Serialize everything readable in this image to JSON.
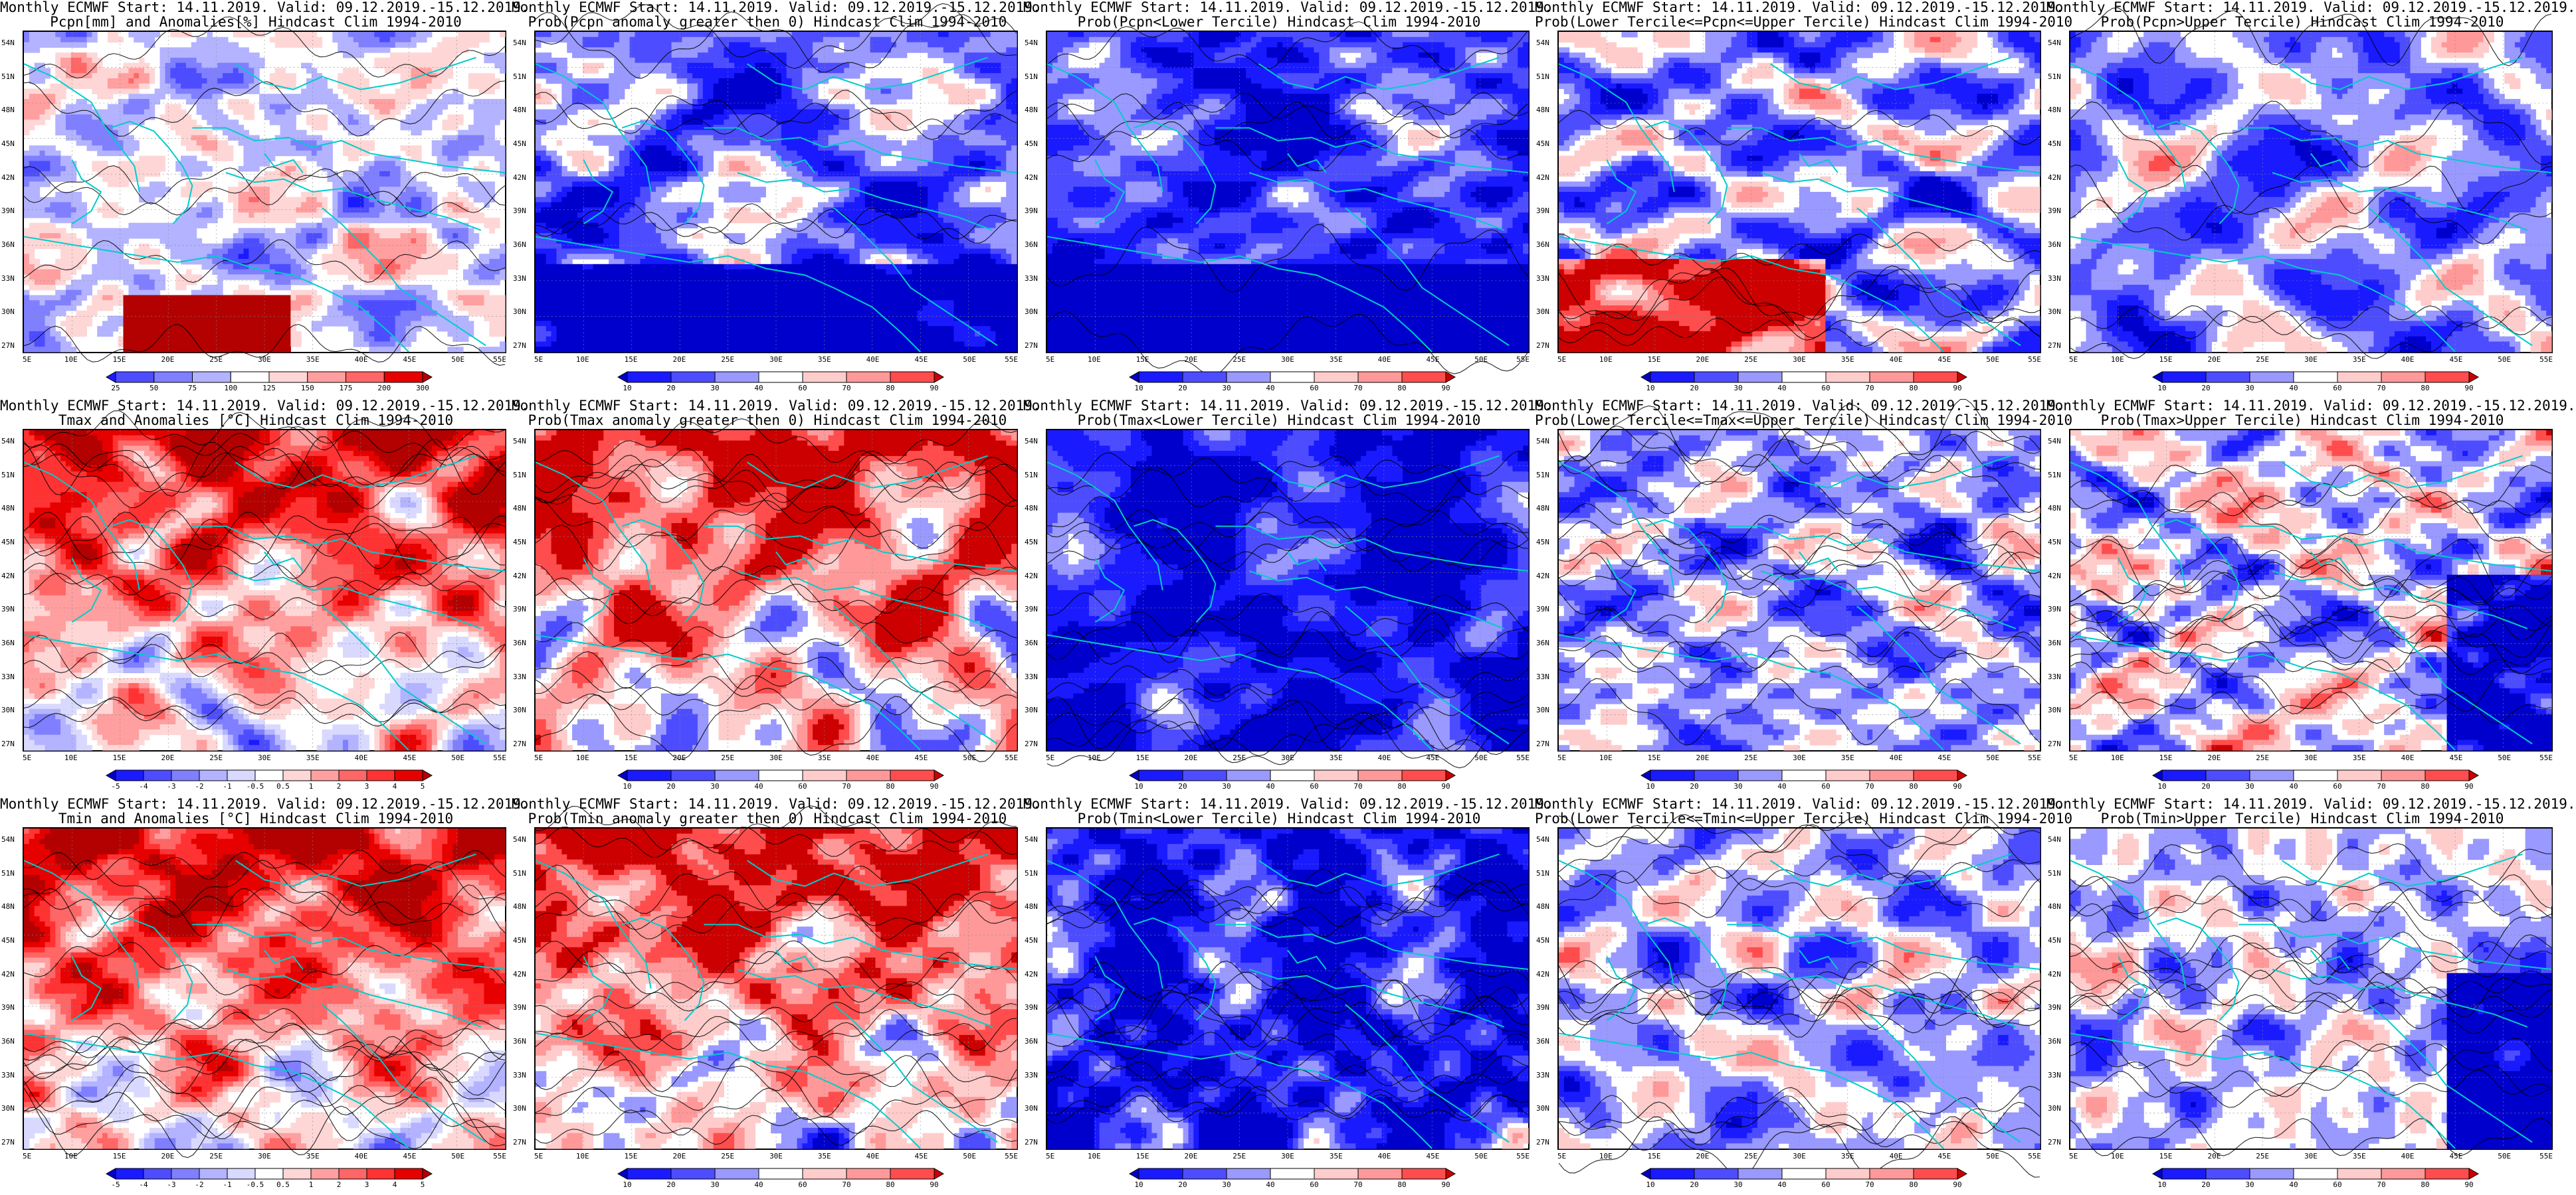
{
  "panels": [
    {
      "key": "pcpn",
      "row": 0,
      "col": 0,
      "title": [
        "Monthly ECMWF Start: 14.11.2019. Valid: 09.12.2019.-15.12.2019.",
        "Pcpn[mm] and Anomalies[%] Hindcast Clim 1994-2010"
      ],
      "colorbar": {
        "ticks": [
          "25",
          "50",
          "75",
          "100",
          "125",
          "150",
          "175",
          "200",
          "300"
        ],
        "colors": [
          "#1a1aff",
          "#4d4dff",
          "#7f7fff",
          "#b3b3ff",
          "#ffffff",
          "#ffd6d6",
          "#ff9f9f",
          "#ff6666",
          "#e60000",
          "#b30000"
        ]
      }
    },
    {
      "key": "p_pcpn_pos",
      "row": 0,
      "col": 1,
      "title": [
        "Monthly ECMWF Start: 14.11.2019. Valid: 09.12.2019.-15.12.2019.",
        "Prob(Pcpn anomaly greater then 0) Hindcast Clim 1994-2010"
      ],
      "colorbar": {
        "ticks": [
          "10",
          "20",
          "30",
          "40",
          "60",
          "70",
          "80",
          "90"
        ],
        "colors": [
          "#0000cc",
          "#1a1aff",
          "#4d4dff",
          "#9999ff",
          "#ffffff",
          "#ffcccc",
          "#ff9999",
          "#ff4d4d",
          "#cc0000"
        ]
      }
    },
    {
      "key": "p_pcpn_lt",
      "row": 0,
      "col": 2,
      "title": [
        "Monthly ECMWF Start: 14.11.2019. Valid: 09.12.2019.-15.12.2019.",
        "Prob(Pcpn<Lower Tercile) Hindcast Clim 1994-2010"
      ],
      "colorbar": {
        "ticks": [
          "10",
          "20",
          "30",
          "40",
          "60",
          "70",
          "80",
          "90"
        ],
        "colors": [
          "#0000cc",
          "#1a1aff",
          "#4d4dff",
          "#9999ff",
          "#ffffff",
          "#ffcccc",
          "#ff9999",
          "#ff4d4d",
          "#cc0000"
        ]
      }
    },
    {
      "key": "p_pcpn_mid",
      "row": 0,
      "col": 3,
      "title": [
        "Monthly ECMWF Start: 14.11.2019. Valid: 09.12.2019.-15.12.2019.",
        "Prob(Lower Tercile<=Pcpn<=Upper Tercile) Hindcast Clim 1994-2010"
      ],
      "colorbar": {
        "ticks": [
          "10",
          "20",
          "30",
          "40",
          "60",
          "70",
          "80",
          "90"
        ],
        "colors": [
          "#0000cc",
          "#1a1aff",
          "#4d4dff",
          "#9999ff",
          "#ffffff",
          "#ffcccc",
          "#ff9999",
          "#ff4d4d",
          "#cc0000"
        ]
      }
    },
    {
      "key": "p_pcpn_gt",
      "row": 0,
      "col": 4,
      "title": [
        "Monthly ECMWF Start: 14.11.2019. Valid: 09.12.2019.-15.12.2019.",
        "Prob(Pcpn>Upper Tercile) Hindcast Clim 1994-2010"
      ],
      "colorbar": {
        "ticks": [
          "10",
          "20",
          "30",
          "40",
          "60",
          "70",
          "80",
          "90"
        ],
        "colors": [
          "#0000cc",
          "#1a1aff",
          "#4d4dff",
          "#9999ff",
          "#ffffff",
          "#ffcccc",
          "#ff9999",
          "#ff4d4d",
          "#cc0000"
        ]
      }
    },
    {
      "key": "tmax",
      "row": 1,
      "col": 0,
      "title": [
        "Monthly ECMWF Start: 14.11.2019. Valid: 09.12.2019.-15.12.2019.",
        "Tmax and Anomalies [°C] Hindcast Clim 1994-2010"
      ],
      "colorbar": {
        "ticks": [
          "-5",
          "-4",
          "-3",
          "-2",
          "-1",
          "-0.5",
          "0.5",
          "1",
          "2",
          "3",
          "4",
          "5"
        ],
        "colors": [
          "#0000cc",
          "#1a1aff",
          "#4d4dff",
          "#7f7fff",
          "#b3b3ff",
          "#d9d9ff",
          "#ffffff",
          "#ffd6d6",
          "#ff9f9f",
          "#ff6666",
          "#ff3333",
          "#e60000",
          "#b30000"
        ]
      }
    },
    {
      "key": "p_tmax_pos",
      "row": 1,
      "col": 1,
      "title": [
        "Monthly ECMWF Start: 14.11.2019. Valid: 09.12.2019.-15.12.2019.",
        "Prob(Tmax anomaly greater then 0) Hindcast Clim 1994-2010"
      ],
      "colorbar": {
        "ticks": [
          "10",
          "20",
          "30",
          "40",
          "60",
          "70",
          "80",
          "90"
        ],
        "colors": [
          "#0000cc",
          "#1a1aff",
          "#4d4dff",
          "#9999ff",
          "#ffffff",
          "#ffcccc",
          "#ff9999",
          "#ff4d4d",
          "#cc0000"
        ]
      }
    },
    {
      "key": "p_tmax_lt",
      "row": 1,
      "col": 2,
      "title": [
        "Monthly ECMWF Start: 14.11.2019. Valid: 09.12.2019.-15.12.2019.",
        "Prob(Tmax<Lower Tercile) Hindcast Clim 1994-2010"
      ],
      "colorbar": {
        "ticks": [
          "10",
          "20",
          "30",
          "40",
          "60",
          "70",
          "80",
          "90"
        ],
        "colors": [
          "#0000cc",
          "#1a1aff",
          "#4d4dff",
          "#9999ff",
          "#ffffff",
          "#ffcccc",
          "#ff9999",
          "#ff4d4d",
          "#cc0000"
        ]
      }
    },
    {
      "key": "p_tmax_mid",
      "row": 1,
      "col": 3,
      "title": [
        "Monthly ECMWF Start: 14.11.2019. Valid: 09.12.2019.-15.12.2019.",
        "Prob(Lower Tercile<=Tmax<=Upper Tercile) Hindcast Clim 1994-2010"
      ],
      "colorbar": {
        "ticks": [
          "10",
          "20",
          "30",
          "40",
          "60",
          "70",
          "80",
          "90"
        ],
        "colors": [
          "#0000cc",
          "#1a1aff",
          "#4d4dff",
          "#9999ff",
          "#ffffff",
          "#ffcccc",
          "#ff9999",
          "#ff4d4d",
          "#cc0000"
        ]
      }
    },
    {
      "key": "p_tmax_gt",
      "row": 1,
      "col": 4,
      "title": [
        "Monthly ECMWF Start: 14.11.2019. Valid: 09.12.2019.-15.12.2019.",
        "Prob(Tmax>Upper Tercile) Hindcast Clim 1994-2010"
      ],
      "colorbar": {
        "ticks": [
          "10",
          "20",
          "30",
          "40",
          "60",
          "70",
          "80",
          "90"
        ],
        "colors": [
          "#0000cc",
          "#1a1aff",
          "#4d4dff",
          "#9999ff",
          "#ffffff",
          "#ffcccc",
          "#ff9999",
          "#ff4d4d",
          "#cc0000"
        ]
      }
    },
    {
      "key": "tmin",
      "row": 2,
      "col": 0,
      "title": [
        "Monthly ECMWF Start: 14.11.2019. Valid: 09.12.2019.-15.12.2019.",
        "Tmin and Anomalies [°C] Hindcast Clim 1994-2010"
      ],
      "colorbar": {
        "ticks": [
          "-5",
          "-4",
          "-3",
          "-2",
          "-1",
          "-0.5",
          "0.5",
          "1",
          "2",
          "3",
          "4",
          "5"
        ],
        "colors": [
          "#0000cc",
          "#1a1aff",
          "#4d4dff",
          "#7f7fff",
          "#b3b3ff",
          "#d9d9ff",
          "#ffffff",
          "#ffd6d6",
          "#ff9f9f",
          "#ff6666",
          "#ff3333",
          "#e60000",
          "#b30000"
        ]
      }
    },
    {
      "key": "p_tmin_pos",
      "row": 2,
      "col": 1,
      "title": [
        "Monthly ECMWF Start: 14.11.2019. Valid: 09.12.2019.-15.12.2019.",
        "Prob(Tmin anomaly greater then 0) Hindcast Clim 1994-2010"
      ],
      "colorbar": {
        "ticks": [
          "10",
          "20",
          "30",
          "40",
          "60",
          "70",
          "80",
          "90"
        ],
        "colors": [
          "#0000cc",
          "#1a1aff",
          "#4d4dff",
          "#9999ff",
          "#ffffff",
          "#ffcccc",
          "#ff9999",
          "#ff4d4d",
          "#cc0000"
        ]
      }
    },
    {
      "key": "p_tmin_lt",
      "row": 2,
      "col": 2,
      "title": [
        "Monthly ECMWF Start: 14.11.2019. Valid: 09.12.2019.-15.12.2019.",
        "Prob(Tmin<Lower Tercile) Hindcast Clim 1994-2010"
      ],
      "colorbar": {
        "ticks": [
          "10",
          "20",
          "30",
          "40",
          "60",
          "70",
          "80",
          "90"
        ],
        "colors": [
          "#0000cc",
          "#1a1aff",
          "#4d4dff",
          "#9999ff",
          "#ffffff",
          "#ffcccc",
          "#ff9999",
          "#ff4d4d",
          "#cc0000"
        ]
      }
    },
    {
      "key": "p_tmin_mid",
      "row": 2,
      "col": 3,
      "title": [
        "Monthly ECMWF Start: 14.11.2019. Valid: 09.12.2019.-15.12.2019.",
        "Prob(Lower Tercile<=Tmin<=Upper Tercile) Hindcast Clim 1994-2010"
      ],
      "colorbar": {
        "ticks": [
          "10",
          "20",
          "30",
          "40",
          "60",
          "70",
          "80",
          "90"
        ],
        "colors": [
          "#0000cc",
          "#1a1aff",
          "#4d4dff",
          "#9999ff",
          "#ffffff",
          "#ffcccc",
          "#ff9999",
          "#ff4d4d",
          "#cc0000"
        ]
      }
    },
    {
      "key": "p_tmin_gt",
      "row": 2,
      "col": 4,
      "title": [
        "Monthly ECMWF Start: 14.11.2019. Valid: 09.12.2019.-15.12.2019.",
        "Prob(Tmin>Upper Tercile) Hindcast Clim 1994-2010"
      ],
      "colorbar": {
        "ticks": [
          "10",
          "20",
          "30",
          "40",
          "60",
          "70",
          "80",
          "90"
        ],
        "colors": [
          "#0000cc",
          "#1a1aff",
          "#4d4dff",
          "#9999ff",
          "#ffffff",
          "#ffcccc",
          "#ff9999",
          "#ff4d4d",
          "#cc0000"
        ]
      }
    }
  ],
  "axes": {
    "lat_labels": [
      "54N",
      "51N",
      "48N",
      "45N",
      "42N",
      "39N",
      "36N",
      "33N",
      "30N",
      "27N"
    ],
    "lon_labels": [
      "5E",
      "10E",
      "15E",
      "20E",
      "25E",
      "30E",
      "35E",
      "40E",
      "45E",
      "50E",
      "55E"
    ]
  },
  "colors": {
    "coastline": "#00cccc",
    "contour": "#000000",
    "frame": "#000000"
  }
}
